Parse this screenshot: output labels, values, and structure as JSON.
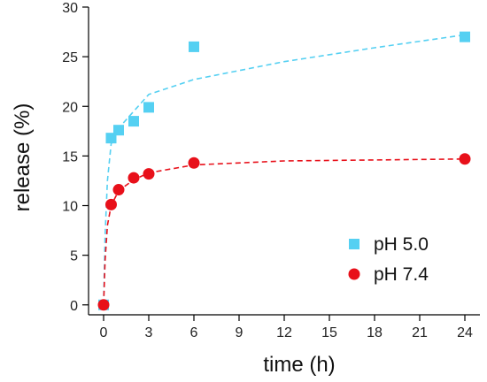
{
  "chart_data": {
    "type": "scatter",
    "title": "",
    "xlabel": "time (h)",
    "ylabel": "release (%)",
    "xlim": [
      -1,
      25
    ],
    "ylim": [
      -1,
      30
    ],
    "xticks": [
      0,
      3,
      6,
      9,
      12,
      15,
      18,
      21,
      24
    ],
    "yticks": [
      0,
      5,
      10,
      15,
      20,
      25,
      30
    ],
    "grid": false,
    "legend_position": "bottom-right",
    "series": [
      {
        "name": "pH 5.0",
        "marker": "square",
        "color": "#55d0f2",
        "points": [
          {
            "x": 0,
            "y": 0
          },
          {
            "x": 0.5,
            "y": 16.8
          },
          {
            "x": 1,
            "y": 17.6
          },
          {
            "x": 2,
            "y": 18.5
          },
          {
            "x": 3,
            "y": 19.9
          },
          {
            "x": 6,
            "y": 26.0
          },
          {
            "x": 24,
            "y": 27.0
          }
        ],
        "fit_curve": [
          {
            "x": 0,
            "y": 0
          },
          {
            "x": 0.1,
            "y": 7
          },
          {
            "x": 0.25,
            "y": 12.5
          },
          {
            "x": 0.5,
            "y": 16.2
          },
          {
            "x": 1,
            "y": 17.8
          },
          {
            "x": 2,
            "y": 19.5
          },
          {
            "x": 3,
            "y": 21.2
          },
          {
            "x": 6,
            "y": 22.7
          },
          {
            "x": 12,
            "y": 24.5
          },
          {
            "x": 18,
            "y": 25.9
          },
          {
            "x": 24,
            "y": 27.2
          }
        ]
      },
      {
        "name": "pH 7.4",
        "marker": "circle",
        "color": "#e8101a",
        "points": [
          {
            "x": 0,
            "y": 0
          },
          {
            "x": 0.5,
            "y": 10.1
          },
          {
            "x": 1,
            "y": 11.6
          },
          {
            "x": 2,
            "y": 12.8
          },
          {
            "x": 3,
            "y": 13.2
          },
          {
            "x": 6,
            "y": 14.3
          },
          {
            "x": 24,
            "y": 14.7
          }
        ],
        "fit_curve": [
          {
            "x": 0,
            "y": 0
          },
          {
            "x": 0.1,
            "y": 4.5
          },
          {
            "x": 0.25,
            "y": 8
          },
          {
            "x": 0.5,
            "y": 10.0
          },
          {
            "x": 1,
            "y": 11.5
          },
          {
            "x": 2,
            "y": 12.6
          },
          {
            "x": 3,
            "y": 13.3
          },
          {
            "x": 6,
            "y": 14.1
          },
          {
            "x": 12,
            "y": 14.5
          },
          {
            "x": 18,
            "y": 14.6
          },
          {
            "x": 24,
            "y": 14.7
          }
        ]
      }
    ]
  }
}
